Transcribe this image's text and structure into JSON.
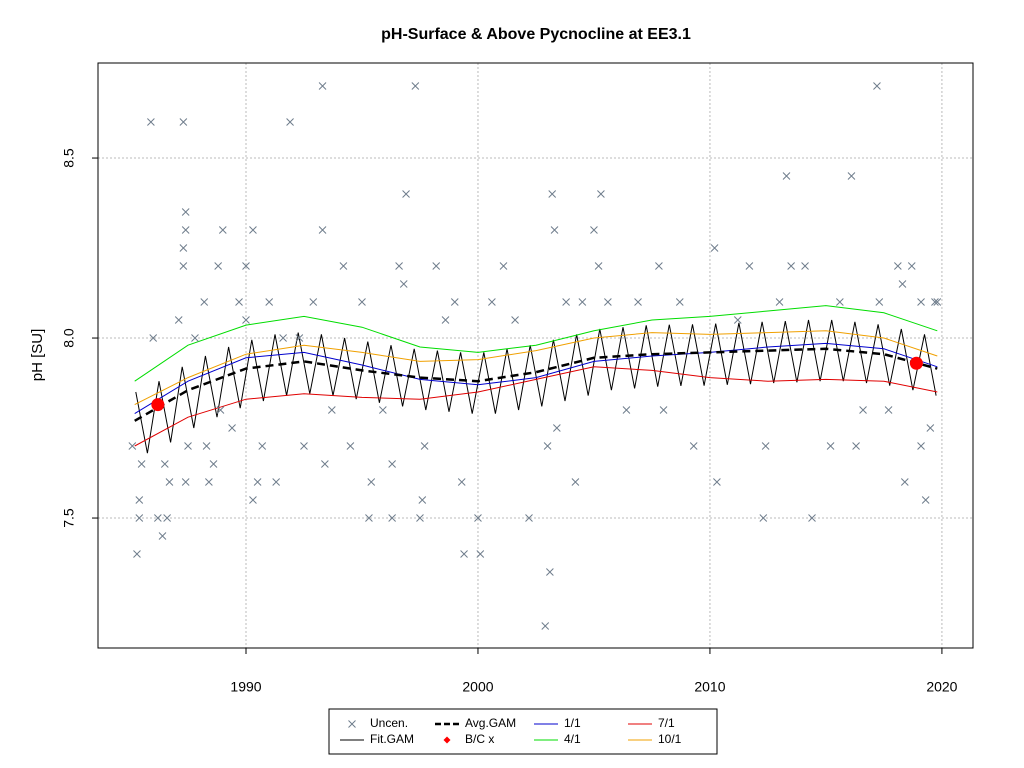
{
  "chart_data": {
    "type": "scatter",
    "title": "pH-Surface & Above Pycnocline at EE3.1",
    "y_label": "pH [SU]",
    "xlim": [
      1983.62,
      2021.34
    ],
    "ylim": [
      7.139,
      8.764
    ],
    "xticks": [
      1990,
      2000,
      2010,
      2020
    ],
    "yticks": [
      7.5,
      {
        "value": 8,
        "label": "8.0"
      },
      8.5
    ],
    "grid": true,
    "series": [
      {
        "name": "Uncen.",
        "color": "#6f7d8c",
        "style": "x",
        "x": [
          1985.1,
          1985.3,
          1985.4,
          1985.4,
          1985.5,
          1985.9,
          1986.0,
          1986.2,
          1986.4,
          1986.5,
          1986.6,
          1986.7,
          1987.1,
          1987.3,
          1987.4,
          1987.3,
          1987.3,
          1987.4,
          1987.4,
          1987.5,
          1987.8,
          1988.2,
          1988.3,
          1988.4,
          1988.6,
          1988.8,
          1989.0,
          1988.9,
          1989.4,
          1989.7,
          1990.0,
          1990.0,
          1990.3,
          1990.3,
          1990.5,
          1990.7,
          1991.0,
          1991.3,
          1991.6,
          1991.9,
          1992.3,
          1992.5,
          1992.9,
          1993.3,
          1993.3,
          1993.4,
          1993.7,
          1994.2,
          1994.5,
          1995.0,
          1995.3,
          1995.4,
          1995.9,
          1996.3,
          1996.3,
          1996.6,
          1996.8,
          1996.9,
          1997.3,
          1997.5,
          1997.6,
          1997.7,
          1998.2,
          1998.6,
          1999.0,
          1999.3,
          1999.4,
          2000.1,
          2000.0,
          2000.6,
          2001.1,
          2001.6,
          2002.2,
          2003.0,
          2002.9,
          2003.1,
          2003.2,
          2003.3,
          2003.4,
          2003.8,
          2004.2,
          2004.5,
          2005.0,
          2005.2,
          2005.3,
          2005.6,
          2006.4,
          2006.9,
          2007.8,
          2008.0,
          2008.7,
          2009.3,
          2010.2,
          2010.3,
          2011.2,
          2011.7,
          2012.3,
          2012.4,
          2013.0,
          2013.3,
          2013.5,
          2014.1,
          2014.4,
          2015.2,
          2015.6,
          2016.1,
          2016.3,
          2016.6,
          2017.2,
          2017.3,
          2017.7,
          2018.1,
          2018.3,
          2018.4,
          2018.7,
          2019.1,
          2019.3,
          2019.5,
          2019.7,
          2019.8,
          2019.1
        ],
        "values": [
          7.7,
          7.4,
          7.55,
          7.5,
          7.65,
          8.6,
          8.0,
          7.5,
          7.45,
          7.65,
          7.5,
          7.6,
          8.05,
          8.6,
          8.35,
          8.2,
          8.25,
          8.3,
          7.6,
          7.7,
          8.0,
          8.1,
          7.7,
          7.6,
          7.65,
          8.2,
          8.3,
          7.8,
          7.75,
          8.1,
          8.05,
          8.2,
          8.3,
          7.55,
          7.6,
          7.7,
          8.1,
          7.6,
          8.0,
          8.6,
          8.0,
          7.7,
          8.1,
          8.7,
          8.3,
          7.65,
          7.8,
          8.2,
          7.7,
          8.1,
          7.5,
          7.6,
          7.8,
          7.5,
          7.65,
          8.2,
          8.15,
          8.4,
          8.7,
          7.5,
          7.55,
          7.7,
          8.2,
          8.05,
          8.1,
          7.6,
          7.4,
          7.4,
          7.5,
          8.1,
          8.2,
          8.05,
          7.5,
          7.7,
          7.2,
          7.35,
          8.4,
          8.3,
          7.75,
          8.1,
          7.6,
          8.1,
          8.3,
          8.2,
          8.4,
          8.1,
          7.8,
          8.1,
          8.2,
          7.8,
          8.1,
          7.7,
          8.25,
          7.6,
          8.05,
          8.2,
          7.5,
          7.7,
          8.1,
          8.45,
          8.2,
          8.2,
          7.5,
          7.7,
          8.1,
          8.45,
          7.7,
          7.8,
          8.7,
          8.1,
          7.8,
          8.2,
          8.15,
          7.6,
          8.2,
          7.7,
          7.55,
          7.75,
          8.1,
          8.1,
          8.1
        ]
      },
      {
        "name": "Fit.GAM",
        "color": "#000000",
        "style": "line",
        "x": [
          1985.25,
          1985.75,
          1986.25,
          1986.75,
          1987.25,
          1987.75,
          1988.25,
          1988.75,
          1989.25,
          1989.75,
          1990.25,
          1990.75,
          1991.25,
          1991.75,
          1992.25,
          1992.75,
          1993.25,
          1993.75,
          1994.25,
          1994.75,
          1995.25,
          1995.75,
          1996.25,
          1996.75,
          1997.25,
          1997.75,
          1998.25,
          1998.75,
          1999.25,
          1999.75,
          2000.25,
          2000.75,
          2001.25,
          2001.75,
          2002.25,
          2002.75,
          2003.25,
          2003.75,
          2004.25,
          2004.75,
          2005.25,
          2005.75,
          2006.25,
          2006.75,
          2007.25,
          2007.75,
          2008.25,
          2008.75,
          2009.25,
          2009.75,
          2010.25,
          2010.75,
          2011.25,
          2011.75,
          2012.25,
          2012.75,
          2013.25,
          2013.75,
          2014.25,
          2014.75,
          2015.25,
          2015.75,
          2016.25,
          2016.75,
          2017.25,
          2017.75,
          2018.25,
          2018.75,
          2019.25,
          2019.75
        ],
        "values": [
          7.85,
          7.68,
          7.88,
          7.71,
          7.92,
          7.75,
          7.95,
          7.78,
          7.975,
          7.805,
          7.995,
          7.825,
          8.01,
          7.84,
          8.015,
          7.845,
          8.01,
          7.84,
          8.0,
          7.83,
          7.99,
          7.82,
          7.98,
          7.81,
          7.97,
          7.8,
          7.965,
          7.795,
          7.96,
          7.79,
          7.96,
          7.79,
          7.97,
          7.8,
          7.98,
          7.81,
          7.995,
          7.825,
          8.01,
          7.84,
          8.025,
          7.855,
          8.03,
          7.86,
          8.035,
          7.865,
          8.037,
          7.867,
          8.038,
          7.868,
          8.04,
          7.87,
          8.042,
          7.872,
          8.045,
          7.875,
          8.047,
          7.877,
          8.05,
          7.88,
          8.05,
          7.88,
          8.045,
          7.875,
          8.038,
          7.868,
          8.025,
          7.855,
          8.01,
          7.84
        ]
      },
      {
        "name": "Avg.GAM",
        "color": "#000000",
        "style": "dashed",
        "x": [
          1985.2,
          1987.5,
          1990,
          1992.5,
          1995,
          1997.5,
          2000,
          2002.5,
          2005,
          2007.5,
          2010,
          2012.5,
          2015,
          2017.5,
          2019.8
        ],
        "values": [
          7.77,
          7.855,
          7.915,
          7.935,
          7.91,
          7.89,
          7.88,
          7.905,
          7.945,
          7.955,
          7.96,
          7.965,
          7.97,
          7.955,
          7.915
        ]
      },
      {
        "name": "B/C x",
        "color": "#ff0000",
        "style": "dot",
        "x": [
          1986.2,
          2018.9
        ],
        "values": [
          7.815,
          7.93
        ]
      },
      {
        "name": "1/1",
        "color": "#0000cd",
        "style": "line",
        "x": [
          1985.2,
          1987.5,
          1990,
          1992.5,
          1995,
          1997.5,
          2000,
          2002.5,
          2005,
          2007.5,
          2010,
          2012.5,
          2015,
          2017.5,
          2019.8
        ],
        "values": [
          7.79,
          7.88,
          7.945,
          7.96,
          7.925,
          7.885,
          7.87,
          7.89,
          7.935,
          7.95,
          7.96,
          7.975,
          7.985,
          7.97,
          7.92
        ]
      },
      {
        "name": "4/1",
        "color": "#00dd00",
        "style": "line",
        "x": [
          1985.2,
          1987.5,
          1990,
          1992.5,
          1995,
          1997.5,
          2000,
          2002.5,
          2005,
          2007.5,
          2010,
          2012.5,
          2015,
          2017.5,
          2019.8
        ],
        "values": [
          7.88,
          7.98,
          8.036,
          8.06,
          8.03,
          7.975,
          7.96,
          7.98,
          8.02,
          8.05,
          8.06,
          8.075,
          8.09,
          8.07,
          8.02
        ]
      },
      {
        "name": "7/1",
        "color": "#e00000",
        "style": "line",
        "x": [
          1985.2,
          1987.5,
          1990,
          1992.5,
          1995,
          1997.5,
          2000,
          2002.5,
          2005,
          2007.5,
          2010,
          2012.5,
          2015,
          2017.5,
          2019.8
        ],
        "values": [
          7.7,
          7.78,
          7.83,
          7.845,
          7.835,
          7.83,
          7.85,
          7.885,
          7.92,
          7.91,
          7.89,
          7.88,
          7.885,
          7.88,
          7.85
        ]
      },
      {
        "name": "10/1",
        "color": "#f0a000",
        "style": "line",
        "x": [
          1985.2,
          1987.5,
          1990,
          1992.5,
          1995,
          1997.5,
          2000,
          2002.5,
          2005,
          2007.5,
          2010,
          2012.5,
          2015,
          2017.5,
          2019.8
        ],
        "values": [
          7.815,
          7.89,
          7.955,
          7.98,
          7.96,
          7.935,
          7.94,
          7.965,
          8.0,
          8.015,
          8.01,
          8.015,
          8.02,
          8.0,
          7.95
        ]
      }
    ]
  }
}
